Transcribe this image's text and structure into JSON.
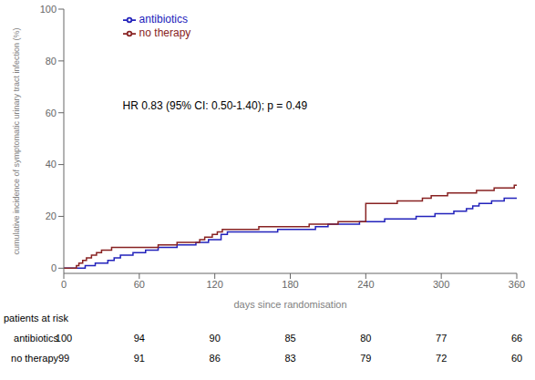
{
  "chart_data": {
    "type": "step",
    "xlabel": "days since randomisation",
    "ylabel": "cumulative incidence of symptomatic urinary tract infection (%)",
    "xlim": [
      0,
      360
    ],
    "ylim": [
      -2,
      100
    ],
    "xticks": [
      0,
      60,
      120,
      180,
      240,
      300,
      360
    ],
    "yticks": [
      0,
      20,
      40,
      60,
      80,
      100
    ],
    "legend": "upper left",
    "annotations": [
      "HR 0.83 (95% CI: 0.50-1.40); p = 0.49"
    ],
    "series": [
      {
        "name": "antibiotics",
        "color": "#2222bb",
        "x": [
          0,
          14,
          17,
          21,
          25,
          28,
          35,
          40,
          45,
          50,
          55,
          60,
          65,
          70,
          75,
          80,
          90,
          100,
          105,
          110,
          115,
          120,
          125,
          130,
          135,
          140,
          150,
          155,
          160,
          165,
          170,
          175,
          180,
          185,
          190,
          195,
          200,
          205,
          210,
          220,
          225,
          230,
          235,
          240,
          245,
          250,
          255,
          260,
          270,
          280,
          290,
          295,
          300,
          310,
          320,
          325,
          330,
          335,
          340,
          350,
          360
        ],
        "values": [
          0,
          0,
          1,
          1,
          2,
          2,
          3,
          4,
          5,
          5,
          6,
          6,
          7,
          7,
          8,
          8,
          9,
          9,
          10,
          10,
          11,
          11,
          13,
          14,
          14,
          14,
          14,
          14,
          14,
          14,
          15,
          15,
          15,
          15,
          15,
          15,
          16,
          16,
          17,
          17,
          17,
          17,
          18,
          18,
          18,
          18,
          19,
          19,
          19,
          20,
          20,
          21,
          21,
          22,
          23,
          24,
          25,
          25,
          26,
          27,
          27
        ]
      },
      {
        "name": "no therapy",
        "color": "#882222",
        "x": [
          0,
          10,
          12,
          15,
          18,
          22,
          26,
          30,
          33,
          38,
          42,
          47,
          52,
          57,
          62,
          68,
          75,
          82,
          90,
          95,
          100,
          108,
          112,
          118,
          122,
          126,
          130,
          135,
          140,
          145,
          150,
          155,
          160,
          165,
          170,
          175,
          180,
          185,
          190,
          195,
          200,
          205,
          210,
          218,
          225,
          230,
          235,
          240,
          248,
          255,
          265,
          275,
          285,
          292,
          298,
          305,
          312,
          320,
          328,
          335,
          342,
          350,
          358,
          360
        ],
        "values": [
          0,
          1,
          2,
          3,
          4,
          5,
          6,
          7,
          7,
          8,
          8,
          8,
          8,
          8,
          8,
          8,
          9,
          9,
          10,
          10,
          10,
          11,
          12,
          13,
          14,
          15,
          15,
          15,
          15,
          15,
          15,
          16,
          16,
          16,
          16,
          16,
          16,
          16,
          16,
          17,
          17,
          17,
          17,
          18,
          18,
          18,
          18,
          25,
          25,
          25,
          26,
          26,
          27,
          28,
          28,
          29,
          29,
          29,
          30,
          30,
          31,
          31,
          32,
          32
        ]
      }
    ],
    "at_risk": {
      "label": "patients at risk",
      "x": [
        0,
        60,
        120,
        180,
        240,
        300,
        360
      ],
      "rows": [
        {
          "name": "antibiotics",
          "values": [
            100,
            94,
            90,
            85,
            80,
            77,
            66
          ]
        },
        {
          "name": "no therapy",
          "values": [
            99,
            91,
            86,
            83,
            79,
            72,
            60
          ]
        }
      ]
    }
  }
}
